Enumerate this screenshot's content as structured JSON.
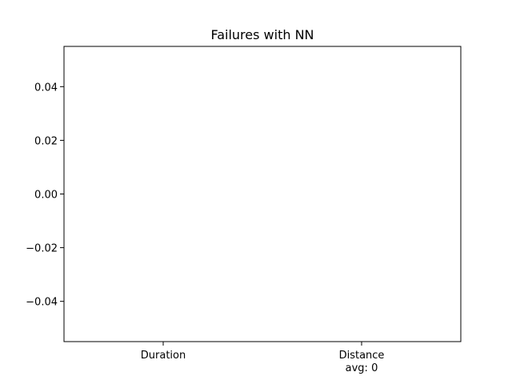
{
  "chart_data": {
    "type": "bar",
    "title": "Failures with NN",
    "xlabel": "",
    "ylabel": "",
    "categories": [
      "Duration",
      "Distance"
    ],
    "category_sublabels": [
      "",
      "avg: 0"
    ],
    "series": [
      {
        "values": [
          0,
          0
        ]
      }
    ],
    "ylim": [
      -0.055,
      0.055
    ],
    "yticks": [
      -0.04,
      -0.02,
      0.0,
      0.02,
      0.04
    ],
    "ytick_labels": [
      "−0.04",
      "−0.02",
      "0.00",
      "0.02",
      "0.04"
    ],
    "grid": false,
    "legend": "none"
  }
}
